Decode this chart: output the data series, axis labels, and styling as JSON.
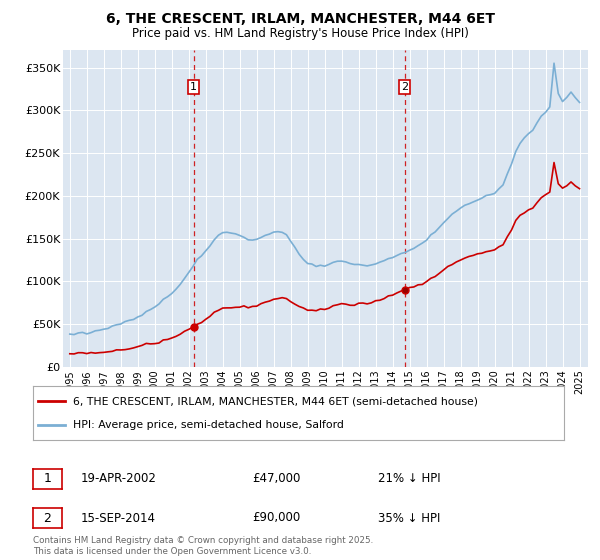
{
  "title": "6, THE CRESCENT, IRLAM, MANCHESTER, M44 6ET",
  "subtitle": "Price paid vs. HM Land Registry's House Price Index (HPI)",
  "sale1_date": "19-APR-2002",
  "sale1_price": 47000,
  "sale1_pct": "21% ↓ HPI",
  "sale1_label": "1",
  "sale2_date": "15-SEP-2014",
  "sale2_price": 90000,
  "sale2_pct": "35% ↓ HPI",
  "sale2_label": "2",
  "legend_house": "6, THE CRESCENT, IRLAM, MANCHESTER, M44 6ET (semi-detached house)",
  "legend_hpi": "HPI: Average price, semi-detached house, Salford",
  "footnote": "Contains HM Land Registry data © Crown copyright and database right 2025.\nThis data is licensed under the Open Government Licence v3.0.",
  "house_color": "#cc0000",
  "hpi_color": "#7bafd4",
  "vline_color": "#cc0000",
  "background_color": "#dce6f1",
  "ylim": [
    0,
    370000
  ],
  "yticks": [
    0,
    50000,
    100000,
    150000,
    200000,
    250000,
    300000,
    350000
  ],
  "ylabel_fmt": [
    "£0",
    "£50K",
    "£100K",
    "£150K",
    "£200K",
    "£250K",
    "£300K",
    "£350K"
  ],
  "xstart": 1995,
  "xend": 2025,
  "sale1_year": 2002.29,
  "sale2_year": 2014.71
}
